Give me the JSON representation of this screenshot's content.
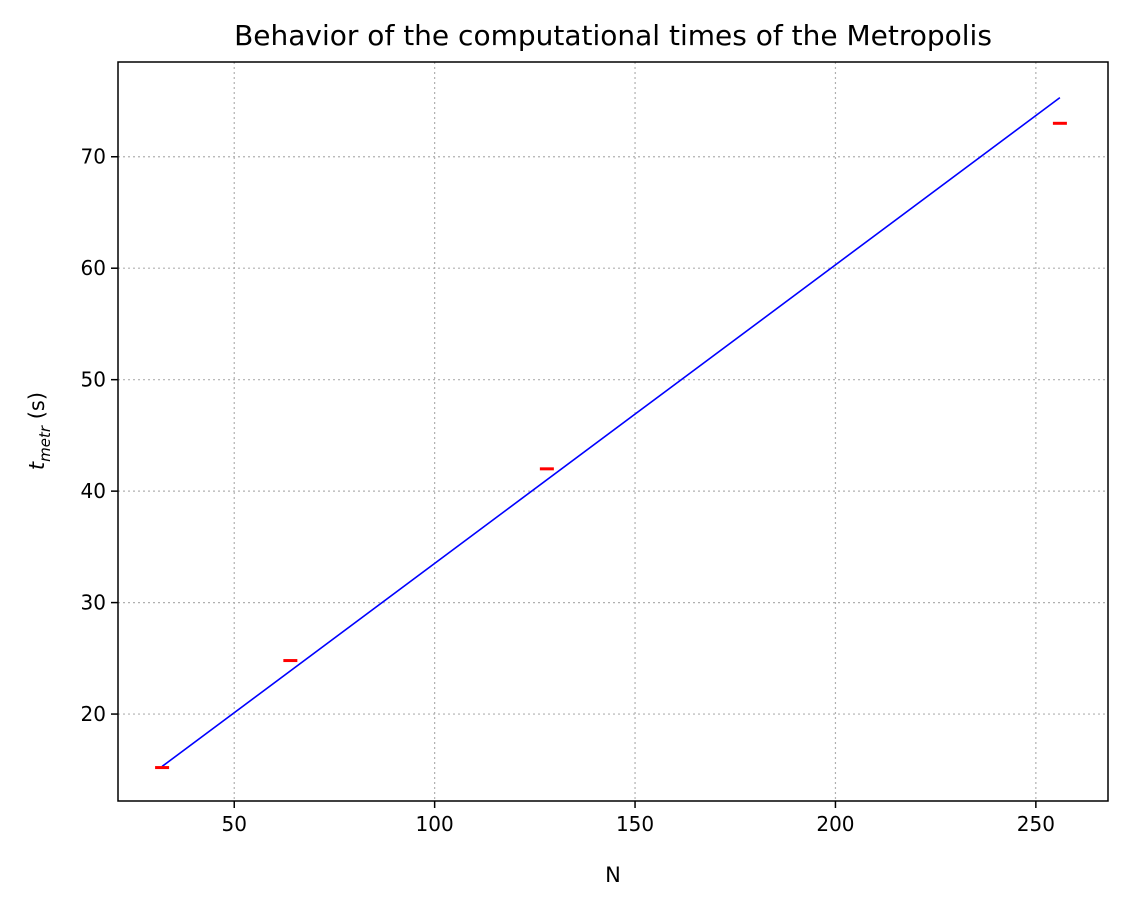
{
  "chart_data": {
    "type": "line",
    "title": "Behavior of the computational times of the Metropolis",
    "xlabel": "N",
    "ylabel": {
      "base": "t",
      "subscript": "metr",
      "unit": " (s)"
    },
    "xlim": [
      21,
      268
    ],
    "ylim": [
      12.2,
      78.5
    ],
    "xticks": [
      50,
      100,
      150,
      200,
      250
    ],
    "yticks": [
      20,
      30,
      40,
      50,
      60,
      70
    ],
    "grid": true,
    "series": [
      {
        "kind": "line",
        "color": "#0000ff",
        "x": [
          32,
          256
        ],
        "y": [
          15.3,
          75.3
        ]
      },
      {
        "kind": "markers",
        "marker": "hline",
        "color": "#ff0000",
        "x": [
          32,
          64,
          128,
          256
        ],
        "y": [
          15.2,
          24.8,
          42.0,
          73.0
        ]
      }
    ]
  }
}
